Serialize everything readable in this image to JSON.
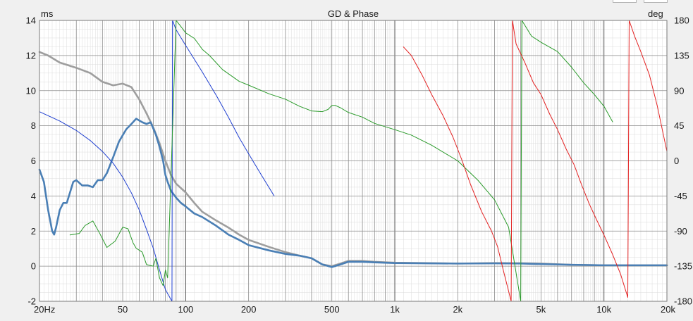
{
  "chart_data": {
    "type": "line",
    "title": "GD & Phase",
    "x_scale": "log",
    "xlim": [
      20,
      20000
    ],
    "y_left": {
      "unit": "ms",
      "lim": [
        -2,
        14
      ],
      "ticks": [
        "-2",
        "0",
        "2",
        "4",
        "6",
        "8",
        "10",
        "12",
        "14"
      ]
    },
    "y_right": {
      "unit": "deg",
      "lim": [
        -180,
        180
      ],
      "ticks": [
        "-180",
        "-135",
        "-90",
        "-45",
        "0",
        "45",
        "90",
        "135",
        "180"
      ]
    },
    "x_ticks": [
      {
        "value": 20,
        "label": "20Hz"
      },
      {
        "value": 50,
        "label": "50"
      },
      {
        "value": 100,
        "label": "100"
      },
      {
        "value": 200,
        "label": "200"
      },
      {
        "value": 500,
        "label": "500"
      },
      {
        "value": 1000,
        "label": "1k"
      },
      {
        "value": 2000,
        "label": "2k"
      },
      {
        "value": 5000,
        "label": "5k"
      },
      {
        "value": 10000,
        "label": "10k"
      },
      {
        "value": 20000,
        "label": "20k"
      }
    ],
    "grid": true,
    "colors": {
      "background": "#ffffff",
      "grid_major": "#8c8c8c",
      "grid_minor": "#dcdcdc",
      "grid_decade": "#505050"
    },
    "series": [
      {
        "axis": "left",
        "color": "#9e9e9e",
        "width": 2.6,
        "points": [
          [
            20,
            12.2
          ],
          [
            22,
            12
          ],
          [
            25,
            11.6
          ],
          [
            30,
            11.3
          ],
          [
            35,
            11
          ],
          [
            40,
            10.5
          ],
          [
            45,
            10.3
          ],
          [
            50,
            10.4
          ],
          [
            55,
            10.2
          ],
          [
            60,
            9.5
          ],
          [
            65,
            8.7
          ],
          [
            70,
            7.9
          ],
          [
            75,
            7
          ],
          [
            80,
            6
          ],
          [
            85,
            5.2
          ],
          [
            90,
            4.7
          ],
          [
            100,
            4.2
          ],
          [
            110,
            3.6
          ],
          [
            120,
            3.1
          ],
          [
            140,
            2.6
          ],
          [
            160,
            2.2
          ],
          [
            180,
            1.8
          ],
          [
            200,
            1.5
          ],
          [
            250,
            1.1
          ],
          [
            300,
            0.8
          ],
          [
            350,
            0.6
          ],
          [
            400,
            0.45
          ],
          [
            450,
            0.1
          ],
          [
            500,
            0
          ],
          [
            550,
            0.15
          ],
          [
            600,
            0.3
          ],
          [
            700,
            0.3
          ],
          [
            800,
            0.25
          ],
          [
            1000,
            0.2
          ],
          [
            2000,
            0.15
          ],
          [
            3000,
            0.18
          ],
          [
            4000,
            0.17
          ],
          [
            5000,
            0.15
          ],
          [
            7000,
            0.08
          ],
          [
            10000,
            0.05
          ],
          [
            20000,
            0.05
          ]
        ]
      },
      {
        "axis": "left",
        "color": "#4a7fb5",
        "width": 2.6,
        "points": [
          [
            20,
            5.5
          ],
          [
            21,
            4.8
          ],
          [
            22,
            3.2
          ],
          [
            23,
            2
          ],
          [
            23.5,
            1.8
          ],
          [
            24,
            2.2
          ],
          [
            25,
            3.2
          ],
          [
            26,
            3.6
          ],
          [
            27,
            3.6
          ],
          [
            28,
            4.2
          ],
          [
            29,
            4.8
          ],
          [
            30,
            4.9
          ],
          [
            32,
            4.6
          ],
          [
            34,
            4.6
          ],
          [
            36,
            4.5
          ],
          [
            38,
            4.9
          ],
          [
            40,
            4.9
          ],
          [
            42,
            5.3
          ],
          [
            45,
            6.2
          ],
          [
            48,
            7.1
          ],
          [
            52,
            7.8
          ],
          [
            55,
            8.1
          ],
          [
            58,
            8.4
          ],
          [
            62,
            8.2
          ],
          [
            65,
            8.1
          ],
          [
            68,
            8.2
          ],
          [
            72,
            7.5
          ],
          [
            75,
            6.8
          ],
          [
            78,
            6
          ],
          [
            80,
            5.2
          ],
          [
            82,
            4.8
          ],
          [
            85,
            4.3
          ],
          [
            90,
            3.9
          ],
          [
            95,
            3.6
          ],
          [
            100,
            3.4
          ],
          [
            110,
            3
          ],
          [
            120,
            2.8
          ],
          [
            140,
            2.3
          ],
          [
            160,
            1.8
          ],
          [
            180,
            1.5
          ],
          [
            200,
            1.2
          ],
          [
            250,
            0.9
          ],
          [
            300,
            0.7
          ],
          [
            350,
            0.6
          ],
          [
            400,
            0.45
          ],
          [
            450,
            0.1
          ],
          [
            500,
            -0.05
          ],
          [
            550,
            0.1
          ],
          [
            600,
            0.25
          ],
          [
            700,
            0.25
          ],
          [
            800,
            0.22
          ],
          [
            1000,
            0.18
          ],
          [
            2000,
            0.15
          ],
          [
            3000,
            0.16
          ],
          [
            4000,
            0.15
          ],
          [
            5000,
            0.12
          ],
          [
            7000,
            0.08
          ],
          [
            10000,
            0.05
          ],
          [
            20000,
            0.05
          ]
        ]
      },
      {
        "axis": "right",
        "color": "#1f3fd0",
        "width": 1,
        "points": [
          [
            20,
            63
          ],
          [
            25,
            51
          ],
          [
            30,
            39
          ],
          [
            35,
            26
          ],
          [
            40,
            12
          ],
          [
            45,
            -3
          ],
          [
            50,
            -21
          ],
          [
            55,
            -41
          ],
          [
            60,
            -63
          ],
          [
            65,
            -88
          ],
          [
            70,
            -112
          ],
          [
            75,
            -140
          ],
          [
            80,
            -165
          ],
          [
            86,
            -180
          ],
          [
            86.5,
            180
          ],
          [
            90,
            168
          ],
          [
            100,
            148
          ],
          [
            120,
            114
          ],
          [
            140,
            84
          ],
          [
            160,
            56
          ],
          [
            180,
            30
          ],
          [
            200,
            9
          ],
          [
            230,
            -18
          ],
          [
            265,
            -45
          ]
        ]
      },
      {
        "axis": "right",
        "color": "#2a9a2a",
        "width": 1,
        "points": [
          [
            28,
            -95
          ],
          [
            31,
            -93
          ],
          [
            33,
            -83
          ],
          [
            36,
            -77
          ],
          [
            39,
            -94
          ],
          [
            42,
            -111
          ],
          [
            46,
            -103
          ],
          [
            50,
            -85
          ],
          [
            53,
            -87
          ],
          [
            56,
            -105
          ],
          [
            58,
            -112
          ],
          [
            62,
            -117
          ],
          [
            65,
            -133
          ],
          [
            70,
            -135
          ],
          [
            72,
            -125
          ],
          [
            75,
            -150
          ],
          [
            78,
            -160
          ],
          [
            80,
            -140
          ],
          [
            82,
            -150
          ],
          [
            90,
            180
          ],
          [
            95,
            172
          ],
          [
            100,
            164
          ],
          [
            110,
            157
          ],
          [
            115,
            150
          ],
          [
            120,
            143
          ],
          [
            130,
            135
          ],
          [
            150,
            117
          ],
          [
            180,
            102
          ],
          [
            200,
            97
          ],
          [
            250,
            86
          ],
          [
            300,
            79
          ],
          [
            350,
            70
          ],
          [
            400,
            64
          ],
          [
            450,
            63
          ],
          [
            480,
            66
          ],
          [
            500,
            71
          ],
          [
            520,
            71
          ],
          [
            550,
            68
          ],
          [
            600,
            62
          ],
          [
            700,
            56
          ],
          [
            800,
            48
          ],
          [
            1000,
            40
          ],
          [
            1200,
            33
          ],
          [
            1500,
            20
          ],
          [
            2000,
            0
          ],
          [
            2500,
            -25
          ],
          [
            3000,
            -50
          ],
          [
            3500,
            -85
          ],
          [
            4000,
            -180
          ],
          [
            4050,
            180
          ],
          [
            4500,
            160
          ],
          [
            5000,
            152
          ],
          [
            6000,
            140
          ],
          [
            7000,
            120
          ],
          [
            8000,
            100
          ],
          [
            9000,
            85
          ],
          [
            10000,
            70
          ],
          [
            11000,
            50
          ]
        ]
      },
      {
        "axis": "right",
        "color": "#e32222",
        "width": 1,
        "points": [
          [
            1100,
            146
          ],
          [
            1200,
            135
          ],
          [
            1350,
            110
          ],
          [
            1500,
            85
          ],
          [
            1700,
            58
          ],
          [
            1900,
            30
          ],
          [
            2100,
            0
          ],
          [
            2300,
            -30
          ],
          [
            2600,
            -65
          ],
          [
            2900,
            -90
          ],
          [
            3100,
            -110
          ],
          [
            3300,
            -140
          ],
          [
            3600,
            -180
          ],
          [
            3650,
            180
          ],
          [
            3800,
            150
          ],
          [
            4200,
            125
          ],
          [
            4600,
            100
          ],
          [
            5000,
            85
          ],
          [
            5500,
            60
          ],
          [
            6000,
            40
          ],
          [
            6600,
            15
          ],
          [
            7200,
            -5
          ],
          [
            7800,
            -30
          ],
          [
            8500,
            -55
          ],
          [
            9200,
            -75
          ],
          [
            10000,
            -95
          ],
          [
            11000,
            -120
          ],
          [
            12000,
            -145
          ],
          [
            13000,
            -175
          ],
          [
            13200,
            180
          ],
          [
            14000,
            160
          ],
          [
            15000,
            140
          ],
          [
            16500,
            110
          ],
          [
            18000,
            70
          ],
          [
            20000,
            12
          ]
        ]
      }
    ]
  }
}
